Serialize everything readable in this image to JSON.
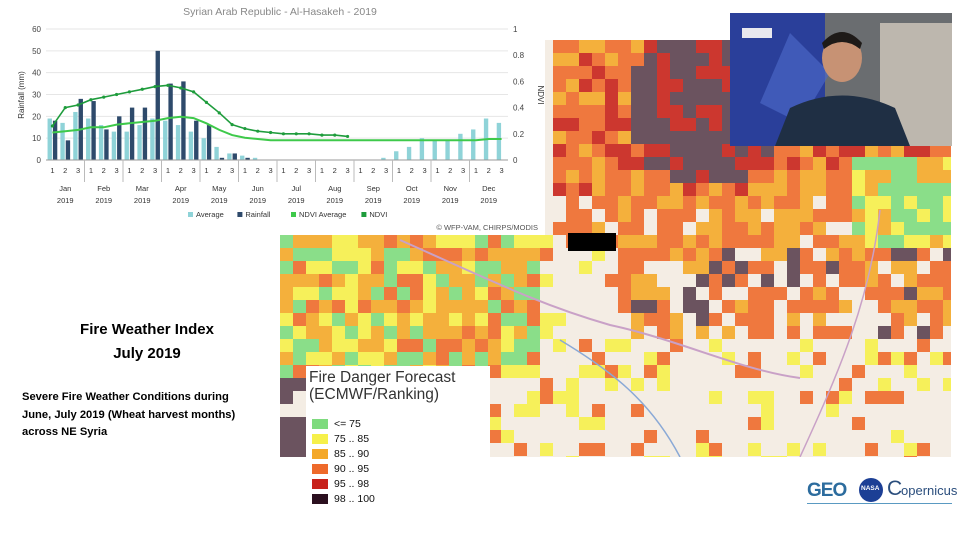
{
  "chart_data": {
    "type": "bar",
    "title": "Syrian Arab Republic - Al-Hasakeh - 2019",
    "ylabel": "Rainfall (mm)",
    "y2label": "NDVI",
    "ylim": [
      0,
      60
    ],
    "y2lim": [
      0,
      1
    ],
    "yticks": [
      "0",
      "10",
      "20",
      "30",
      "40",
      "50",
      "60"
    ],
    "y2ticks": [
      "0",
      "0.2",
      "0.4",
      "0.6",
      "0.8",
      "1"
    ],
    "dekad_labels": [
      "1",
      "2",
      "3"
    ],
    "months": [
      {
        "name": "Jan",
        "year": "2019"
      },
      {
        "name": "Feb",
        "year": "2019"
      },
      {
        "name": "Mar",
        "year": "2019"
      },
      {
        "name": "Apr",
        "year": "2019"
      },
      {
        "name": "May",
        "year": "2019"
      },
      {
        "name": "Jun",
        "year": "2019"
      },
      {
        "name": "Jul",
        "year": "2019"
      },
      {
        "name": "Aug",
        "year": "2019"
      },
      {
        "name": "Sep",
        "year": "2019"
      },
      {
        "name": "Oct",
        "year": "2019"
      },
      {
        "name": "Nov",
        "year": "2019"
      },
      {
        "name": "Dec",
        "year": "2019"
      }
    ],
    "series": [
      {
        "name": "Average",
        "color": "#8fd3d8",
        "values": [
          19,
          17,
          22,
          19,
          16,
          13,
          13,
          16,
          19,
          18,
          16,
          13,
          10,
          6,
          3,
          2,
          1,
          0,
          0,
          0,
          0,
          0,
          0,
          0,
          0,
          0,
          1,
          4,
          6,
          10,
          9,
          9,
          12,
          14,
          19,
          17
        ]
      },
      {
        "name": "Rainfall",
        "color": "#2e4a6b",
        "values": [
          18,
          9,
          28,
          27,
          14,
          20,
          24,
          24,
          50,
          35,
          36,
          18,
          16,
          1,
          3,
          1,
          0,
          0,
          0,
          0,
          0,
          0,
          0,
          0,
          0,
          0,
          0,
          0,
          0,
          0,
          0,
          0,
          0,
          0,
          0,
          0
        ]
      },
      {
        "name": "NDVI Average",
        "color": "#3ec94a",
        "values": [
          0.21,
          0.22,
          0.23,
          0.25,
          0.25,
          0.27,
          0.28,
          0.29,
          0.3,
          0.32,
          0.33,
          0.32,
          0.28,
          0.23,
          0.19,
          0.17,
          0.16,
          0.15,
          0.15,
          0.15,
          0.15,
          0.15,
          0.15,
          0.15,
          0.15,
          0.15,
          0.15,
          0.15,
          0.15,
          0.15,
          0.15,
          0.15,
          0.15,
          0.15,
          0.16,
          0.16
        ]
      },
      {
        "name": "NDVI",
        "color": "#1e9c3c",
        "values": [
          0.26,
          0.4,
          0.42,
          0.46,
          0.48,
          0.5,
          0.52,
          0.54,
          0.56,
          0.57,
          0.55,
          0.52,
          0.44,
          0.36,
          0.27,
          0.24,
          0.22,
          0.21,
          0.2,
          0.2,
          0.2,
          0.19,
          0.19,
          0.18,
          null,
          null,
          null,
          null,
          null,
          null,
          null,
          null,
          null,
          null,
          null,
          null
        ]
      }
    ],
    "legend_position": "bottom",
    "source": "© WFP-VAM, CHIRPS/MODIS"
  },
  "legend": {
    "title_line1": "Fire Danger Forecast",
    "title_line2": "(ECMWF/Ranking)",
    "items": [
      {
        "label": "<= 75",
        "color": "#7edb7e"
      },
      {
        "label": "75 .. 85",
        "color": "#f6f04a"
      },
      {
        "label": "85 .. 90",
        "color": "#f4a829"
      },
      {
        "label": "90 .. 95",
        "color": "#ee6a2b"
      },
      {
        "label": "95 .. 98",
        "color": "#c8221b"
      },
      {
        "label": "98 .. 100",
        "color": "#2b0f1f"
      }
    ]
  },
  "fwi": {
    "title_line1": "Fire Weather Index",
    "title_line2": "July 2019",
    "desc_line1": "Severe Fire Weather Conditions during",
    "desc_line2": "June, July 2019 (Wheat harvest months)",
    "desc_line3": "across NE Syria"
  },
  "logos": {
    "geo": "GEO",
    "nasa": "NASA",
    "copernicus": "opernicus"
  }
}
